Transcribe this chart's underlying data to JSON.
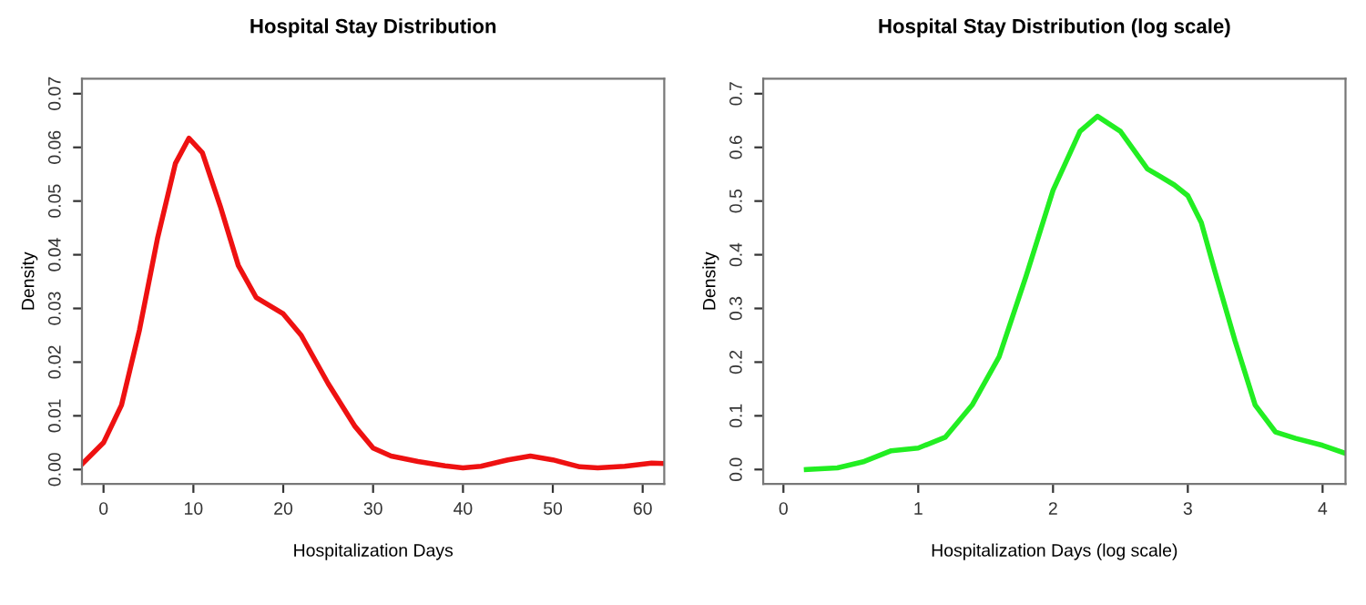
{
  "chart_data": [
    {
      "type": "line",
      "title": "Hospital Stay Distribution",
      "xlabel": "Hospitalization Days",
      "ylabel": "Density",
      "series": [
        {
          "color": "#ee1111",
          "x": [
            -2.4,
            0,
            2,
            4,
            6,
            8,
            9.5,
            11,
            13,
            15,
            17,
            20,
            22,
            25,
            28,
            30,
            32,
            35,
            38,
            40,
            42,
            45,
            47.5,
            50,
            53,
            55,
            58,
            61,
            62.4
          ],
          "values": [
            0.001,
            0.005,
            0.012,
            0.026,
            0.043,
            0.057,
            0.0617,
            0.059,
            0.049,
            0.038,
            0.032,
            0.029,
            0.025,
            0.016,
            0.008,
            0.004,
            0.0025,
            0.0015,
            0.0007,
            0.0003,
            0.0006,
            0.0018,
            0.0025,
            0.0018,
            0.0005,
            0.0003,
            0.0006,
            0.0012,
            0.0011
          ]
        }
      ],
      "xlim": [
        -2.4,
        62.4
      ],
      "ylim": [
        -0.0027,
        0.0728
      ],
      "xticks": [
        0,
        10,
        20,
        30,
        40,
        50,
        60
      ],
      "yticks": [
        {
          "value": 0,
          "label": "0.00"
        },
        0.01,
        0.02,
        0.03,
        0.04,
        0.05,
        0.06,
        0.07
      ],
      "grid": false,
      "legend": false
    },
    {
      "type": "line",
      "title": "Hospital Stay Distribution (log scale)",
      "xlabel": "Hospitalization Days (log scale)",
      "ylabel": "Density",
      "series": [
        {
          "color": "#22ee22",
          "x": [
            0.17,
            0.4,
            0.6,
            0.8,
            1.0,
            1.2,
            1.4,
            1.6,
            1.8,
            2.0,
            2.2,
            2.33,
            2.5,
            2.7,
            2.9,
            3.0,
            3.1,
            3.2,
            3.35,
            3.5,
            3.65,
            3.8,
            4.0,
            4.17
          ],
          "values": [
            0.0,
            0.003,
            0.015,
            0.035,
            0.04,
            0.06,
            0.12,
            0.21,
            0.36,
            0.52,
            0.63,
            0.658,
            0.63,
            0.56,
            0.53,
            0.51,
            0.46,
            0.37,
            0.24,
            0.12,
            0.07,
            0.058,
            0.045,
            0.03
          ]
        }
      ],
      "xlim": [
        -0.15,
        4.17
      ],
      "ylim": [
        -0.027,
        0.728
      ],
      "xticks": [
        0,
        1,
        2,
        3,
        4
      ],
      "yticks": [
        {
          "value": 0,
          "label": "0.0"
        },
        0.1,
        0.2,
        0.3,
        0.4,
        0.5,
        0.6,
        0.7
      ],
      "grid": false,
      "legend": false
    }
  ]
}
